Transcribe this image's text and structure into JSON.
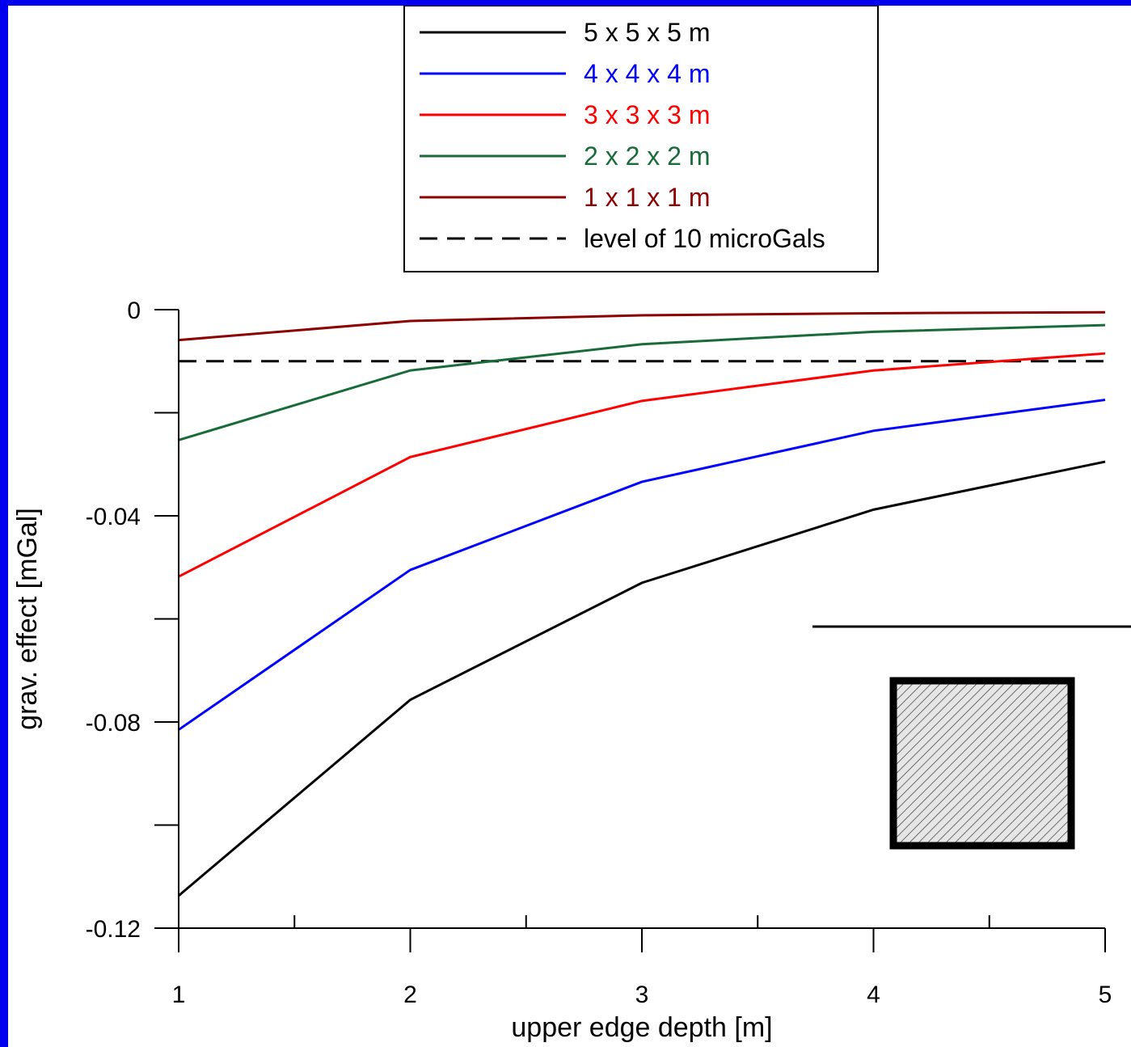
{
  "chart_data": {
    "type": "line",
    "title": "",
    "xlabel": "upper edge depth [m]",
    "ylabel": "grav. effect [mGal]",
    "xlim": [
      1,
      5
    ],
    "ylim": [
      -0.12,
      0
    ],
    "x": [
      1,
      2,
      3,
      4,
      5
    ],
    "x_tick_labels": [
      "1",
      "2",
      "3",
      "4",
      "5"
    ],
    "y_tick_labels": [
      "0",
      "-0.04",
      "-0.08",
      "-0.12"
    ],
    "y_tick_values": [
      0,
      -0.04,
      -0.08,
      -0.12
    ],
    "series": [
      {
        "name": "5 x 5 x 5 m",
        "color": "#000000",
        "values": [
          -0.1137,
          -0.0757,
          -0.053,
          -0.0388,
          -0.0295
        ]
      },
      {
        "name": "4 x 4 x 4 m",
        "color": "#0000ff",
        "values": [
          -0.0815,
          -0.0505,
          -0.0334,
          -0.0235,
          -0.0175
        ]
      },
      {
        "name": "3 x 3 x 3 m",
        "color": "#ff0000",
        "values": [
          -0.0518,
          -0.0286,
          -0.0177,
          -0.0118,
          -0.0085
        ]
      },
      {
        "name": "2 x 2 x 2 m",
        "color": "#1a6b3a",
        "values": [
          -0.0253,
          -0.0118,
          -0.0067,
          -0.0043,
          -0.003
        ]
      },
      {
        "name": "1 x 1 x 1 m",
        "color": "#8b0000",
        "values": [
          -0.0059,
          -0.0022,
          -0.0011,
          -0.0007,
          -0.0005
        ]
      }
    ],
    "reference_line": {
      "name": "level of 10 microGals",
      "value": -0.01,
      "color": "#000000",
      "style": "dashed"
    },
    "legend_position": "top-center",
    "grid": false,
    "inset_icon": "buried-cube-icon"
  }
}
